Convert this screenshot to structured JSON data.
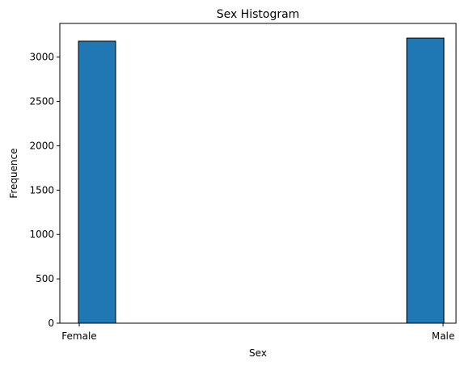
{
  "chart_data": {
    "type": "bar",
    "title": "Sex Histogram",
    "xlabel": "Sex",
    "ylabel": "Frequence",
    "categories": [
      "Female",
      "Male"
    ],
    "values": [
      3180,
      3215
    ],
    "ylim": [
      0,
      3380
    ],
    "yticks": [
      0,
      500,
      1000,
      1500,
      2000,
      2500,
      3000
    ],
    "grid": false,
    "legend": "none",
    "bar_color": "#1f77b4",
    "edge_color": "#000000"
  }
}
